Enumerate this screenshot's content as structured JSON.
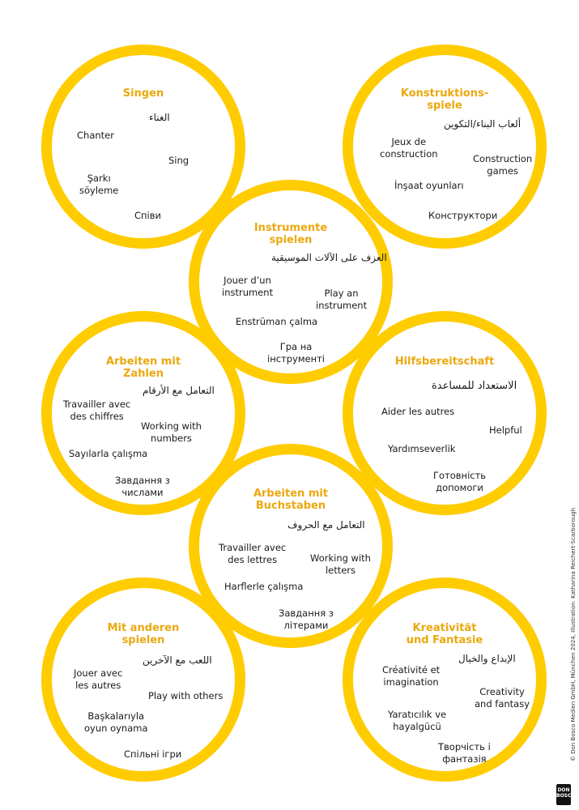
{
  "colors": {
    "ring": "#ffcc00",
    "title": "#eba80e",
    "text": "#1a1a1a"
  },
  "circles": [
    {
      "title": "Singen",
      "words": [
        "الغناء",
        "Chanter",
        "Sing",
        "Şarkı\nsöyleme",
        "Співи"
      ]
    },
    {
      "title": "Konstruktions-\nspiele",
      "words": [
        "ألعاب البناء/التكوين",
        "Jeux de\nconstruction",
        "Construction\ngames",
        "İnşaat oyunları",
        "Конструктори"
      ]
    },
    {
      "title": "Instrumente\nspielen",
      "words": [
        "العزف على الآلات الموسيقية",
        "Jouer d’un\ninstrument",
        "Play an\ninstrument",
        "Enstrüman çalma",
        "Гра на\nінструменті"
      ]
    },
    {
      "title": "Arbeiten mit\nZahlen",
      "words": [
        "التعامل مع الأرقام",
        "Travailler avec\ndes chiffres",
        "Working with\nnumbers",
        "Sayılarla çalışma",
        "Завдання з\nчислами"
      ]
    },
    {
      "title": "Hilfsbereitschaft",
      "words": [
        "الاستعداد للمساعدة",
        "Aider les autres",
        "Helpful",
        "Yardımseverlik",
        "Готовність\nдопомоги"
      ]
    },
    {
      "title": "Arbeiten mit\nBuchstaben",
      "words": [
        "التعامل مع الحروف",
        "Travailler avec\ndes lettres",
        "Working with\nletters",
        "Harflerle çalışma",
        "Завдання з\nлітерами"
      ]
    },
    {
      "title": "Mit anderen\nspielen",
      "words": [
        "اللعب مع الآخرين",
        "Jouer avec\nles autres",
        "Play with others",
        "Başkalarıyla\noyun oynama",
        "Спільні ігри"
      ]
    },
    {
      "title": "Kreativität\nund Fantasie",
      "words": [
        "الإبداع والخيال",
        "Créativité et\nimagination",
        "Creativity\nand fantasy",
        "Yaratıcılık ve\nhayalgücü",
        "Творчість і\nфантазія"
      ]
    }
  ],
  "credit": "© Don Bosco Medien GmbH, München 2024, Illustration: Katharina Reichert-Scarborough",
  "logo_text": "DON\nBOSCO"
}
